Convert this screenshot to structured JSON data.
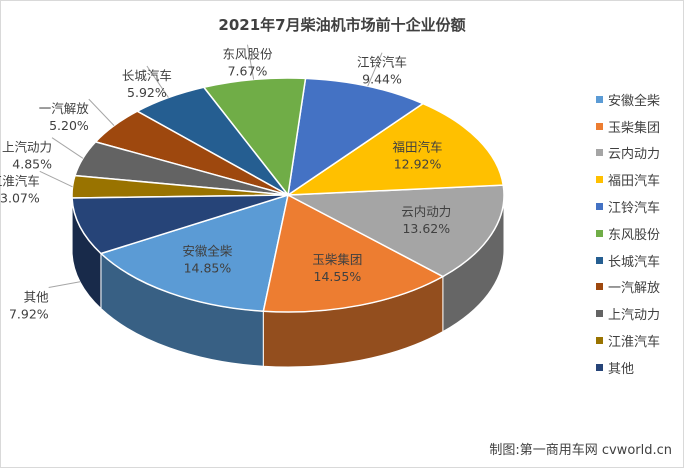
{
  "chart_data": {
    "type": "pie",
    "title": "2021年7月柴油机市场前十企业份额",
    "legend_position": "right",
    "slices": [
      {
        "name": "安徽全柴",
        "value": 14.85,
        "label": "14.85%",
        "color": "#5B9BD5"
      },
      {
        "name": "玉柴集团",
        "value": 14.55,
        "label": "14.55%",
        "color": "#ED7D31"
      },
      {
        "name": "云内动力",
        "value": 13.62,
        "label": "13.62%",
        "color": "#A5A5A5"
      },
      {
        "name": "福田汽车",
        "value": 12.92,
        "label": "12.92%",
        "color": "#FFC000"
      },
      {
        "name": "江铃汽车",
        "value": 9.44,
        "label": "9.44%",
        "color": "#4472C4"
      },
      {
        "name": "东风股份",
        "value": 7.67,
        "label": "7.67%",
        "color": "#70AD47"
      },
      {
        "name": "长城汽车",
        "value": 5.92,
        "label": "5.92%",
        "color": "#255E91"
      },
      {
        "name": "一汽解放",
        "value": 5.2,
        "label": "5.20%",
        "color": "#9E480E"
      },
      {
        "name": "上汽动力",
        "value": 4.85,
        "label": "4.85%",
        "color": "#636363"
      },
      {
        "name": "江淮汽车",
        "value": 3.07,
        "label": "3.07%",
        "color": "#997300"
      },
      {
        "name": "其他",
        "value": 7.92,
        "label": "7.92%",
        "color": "#264478"
      }
    ]
  },
  "credit": "制图:第一商用车网 cvworld.cn"
}
